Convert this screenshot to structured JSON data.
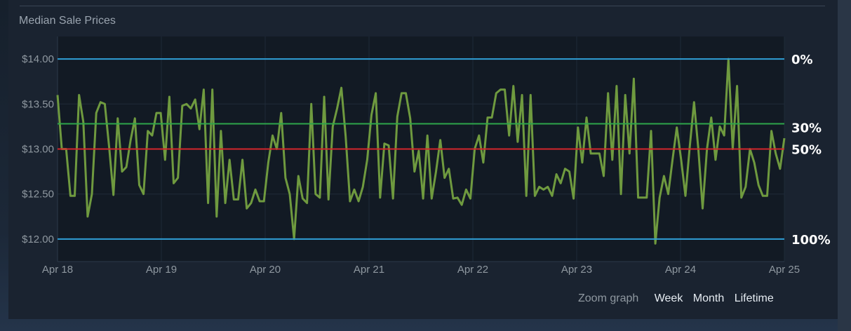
{
  "title": "Median Sale Prices",
  "zoom": {
    "label": "Zoom graph",
    "options": [
      "Week",
      "Month",
      "Lifetime"
    ]
  },
  "colors": {
    "line": "#6f9a3f",
    "ref_blue": "#2f9fd6",
    "ref_green": "#2ea64a",
    "ref_red": "#d4252b",
    "plot_bg": "#121a24",
    "grid": "#1f2b38"
  },
  "chart_data": {
    "type": "line",
    "title": "Median Sale Prices",
    "xlabel": "",
    "ylabel": "",
    "x_ticks": [
      "Apr 18",
      "Apr 19",
      "Apr 20",
      "Apr 21",
      "Apr 22",
      "Apr 23",
      "Apr 24",
      "Apr 25"
    ],
    "x_range_days": [
      0,
      7
    ],
    "y_ticks": [
      "$12.00",
      "$12.50",
      "$13.00",
      "$13.50",
      "$14.00"
    ],
    "y_tick_values": [
      12.0,
      12.5,
      13.0,
      13.5,
      14.0
    ],
    "ylim": [
      11.75,
      14.25
    ],
    "grid": true,
    "reference_lines": [
      {
        "label": "0%",
        "value": 14.0,
        "color": "blue"
      },
      {
        "label": "30%",
        "value": 13.28,
        "color": "green"
      },
      {
        "label": "50%",
        "value": 13.0,
        "color": "red"
      },
      {
        "label": "100%",
        "value": 12.0,
        "color": "blue"
      }
    ],
    "series": [
      {
        "values": [
          13.6,
          13.0,
          13.0,
          12.48,
          12.48,
          13.6,
          13.3,
          12.25,
          12.5,
          13.4,
          13.52,
          13.5,
          13.02,
          12.49,
          13.34,
          12.75,
          12.8,
          13.1,
          13.34,
          12.6,
          12.5,
          13.2,
          13.15,
          13.4,
          13.4,
          12.88,
          13.58,
          12.62,
          12.68,
          13.48,
          13.5,
          13.45,
          13.55,
          13.22,
          13.66,
          12.4,
          13.66,
          12.25,
          13.2,
          12.4,
          12.88,
          12.44,
          12.44,
          12.88,
          12.34,
          12.4,
          12.55,
          12.42,
          12.42,
          12.85,
          13.15,
          13.0,
          13.4,
          12.68,
          12.5,
          12.0,
          12.7,
          12.45,
          12.4,
          13.5,
          12.5,
          12.46,
          13.58,
          12.44,
          13.25,
          13.45,
          13.68,
          13.14,
          12.42,
          12.55,
          12.42,
          12.58,
          12.88,
          13.38,
          13.62,
          12.46,
          13.06,
          13.04,
          12.45,
          13.36,
          13.62,
          13.62,
          13.34,
          12.75,
          12.98,
          12.45,
          13.15,
          12.45,
          12.75,
          13.1,
          12.68,
          12.78,
          12.45,
          12.46,
          12.38,
          12.55,
          12.45,
          13.0,
          13.15,
          12.85,
          13.35,
          13.35,
          13.62,
          13.66,
          13.66,
          13.15,
          13.7,
          13.08,
          13.6,
          12.48,
          13.6,
          12.48,
          12.58,
          12.55,
          12.58,
          12.48,
          12.72,
          12.62,
          12.78,
          12.75,
          12.45,
          13.24,
          12.85,
          13.35,
          12.95,
          12.95,
          12.95,
          12.7,
          13.62,
          12.88,
          13.7,
          12.5,
          13.6,
          12.95,
          13.78,
          12.46,
          12.46,
          12.46,
          13.2,
          11.95,
          12.46,
          12.7,
          12.5,
          12.88,
          13.24,
          12.88,
          12.48,
          13.02,
          13.52,
          13.0,
          12.34,
          13.0,
          13.35,
          12.88,
          13.25,
          13.15,
          14.0,
          13.0,
          13.7,
          12.46,
          12.58,
          13.0,
          12.85,
          12.6,
          12.48,
          12.48,
          13.2,
          12.95,
          12.78,
          13.12
        ]
      }
    ]
  }
}
